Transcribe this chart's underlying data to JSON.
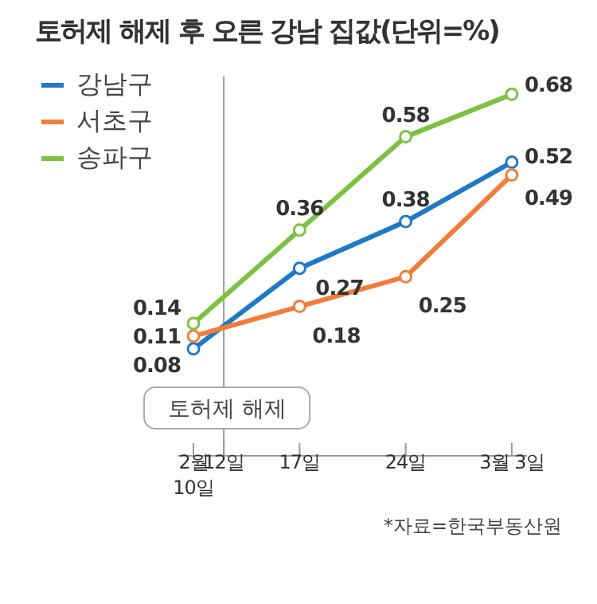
{
  "chart_data": {
    "type": "line",
    "title": "토허제 해제 후 오른 강남 집값(단위=%)",
    "x": [
      "--02-10",
      "--02-17",
      "--02-24",
      "--03-03"
    ],
    "series": [
      {
        "name": "강남구",
        "color": "#1f78c8",
        "values": [
          0.08,
          0.27,
          0.38,
          0.52
        ]
      },
      {
        "name": "서초구",
        "color": "#f07d3a",
        "values": [
          0.11,
          0.18,
          0.25,
          0.49
        ]
      },
      {
        "name": "송파구",
        "color": "#7cc242",
        "values": [
          0.14,
          0.36,
          0.58,
          0.68
        ]
      }
    ],
    "xlim": [
      "--02-09",
      "--03-04"
    ],
    "xticks": [
      {
        "value": "--02-10",
        "label": "2월\n10일"
      },
      {
        "value": "--02-12",
        "label": "12일"
      },
      {
        "value": "--02-17",
        "label": "17일"
      },
      {
        "value": "--02-24",
        "label": "24일"
      },
      {
        "value": "--03-03",
        "label": "3월 3일"
      }
    ],
    "ref_lines": [
      {
        "axis": "x",
        "value": "--02-12",
        "label": "토허제 해제",
        "color": "#999999"
      }
    ],
    "annotations": [
      "*자료=한국부동산원"
    ],
    "data_labels": true,
    "legend": "top left",
    "marker": "circle",
    "line_style": "solid",
    "tick_labels": "x",
    "grid": false
  }
}
